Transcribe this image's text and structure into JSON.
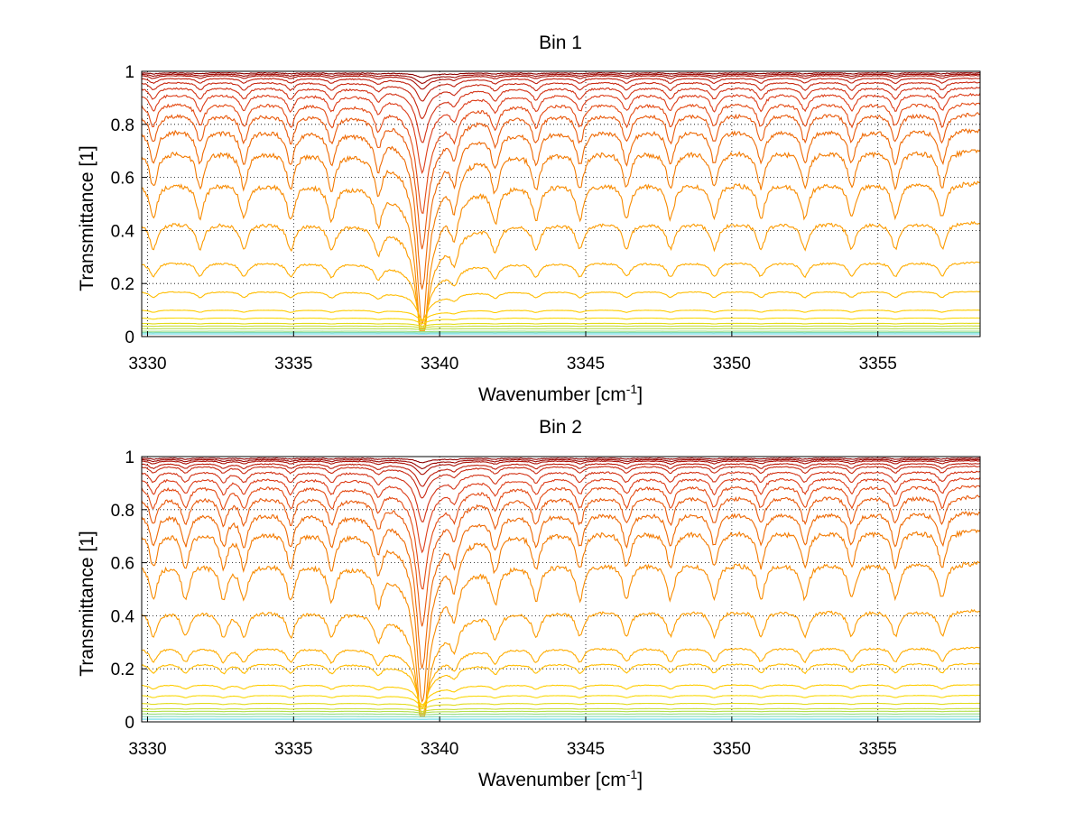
{
  "figure": {
    "background": "#ffffff"
  },
  "chart_data": [
    {
      "type": "line",
      "title": "Bin 1",
      "xlabel": "Wavenumber [cm",
      "xlabel_sup": "-1",
      "xlabel_suffix": "]",
      "ylabel": "Transmittance [1]",
      "xlim": [
        3329.8,
        3358.5
      ],
      "ylim": [
        0,
        1
      ],
      "xticks": [
        3330,
        3335,
        3340,
        3345,
        3350,
        3355
      ],
      "xtick_labels": [
        "3330",
        "3335",
        "3340",
        "3345",
        "3350",
        "3355"
      ],
      "yticks": [
        0,
        0.2,
        0.4,
        0.6,
        0.8,
        1
      ],
      "ytick_labels": [
        "0",
        "0.2",
        "0.4",
        "0.6",
        "0.8",
        "1"
      ],
      "grid": true,
      "grid_style": "dotted",
      "colormap": [
        "#8b0000",
        "#c1200f",
        "#e0401a",
        "#f07000",
        "#ffa500",
        "#ffd700",
        "#b8e04a",
        "#66d9e8"
      ],
      "line_spectra": {
        "baseline_levels": [
          0.995,
          0.99,
          0.985,
          0.975,
          0.96,
          0.94,
          0.915,
          0.88,
          0.84,
          0.78,
          0.7,
          0.58,
          0.43,
          0.28,
          0.17,
          0.1,
          0.07,
          0.05,
          0.04,
          0.03,
          0.02,
          0.015,
          0.01
        ],
        "strong_line_center": 3339.4,
        "absorption_line_centers": [
          3330.2,
          3331.8,
          3333.3,
          3334.9,
          3336.3,
          3337.9,
          3340.5,
          3341.9,
          3343.3,
          3344.8,
          3346.4,
          3347.9,
          3349.4,
          3351.0,
          3352.5,
          3354.1,
          3355.6,
          3357.2
        ],
        "series_count": 23
      }
    },
    {
      "type": "line",
      "title": "Bin 2",
      "xlabel": "Wavenumber [cm",
      "xlabel_sup": "-1",
      "xlabel_suffix": "]",
      "ylabel": "Transmittance [1]",
      "xlim": [
        3329.8,
        3358.5
      ],
      "ylim": [
        0,
        1
      ],
      "xticks": [
        3330,
        3335,
        3340,
        3345,
        3350,
        3355
      ],
      "xtick_labels": [
        "3330",
        "3335",
        "3340",
        "3345",
        "3350",
        "3355"
      ],
      "yticks": [
        0,
        0.2,
        0.4,
        0.6,
        0.8,
        1
      ],
      "ytick_labels": [
        "0",
        "0.2",
        "0.4",
        "0.6",
        "0.8",
        "1"
      ],
      "grid": true,
      "grid_style": "dotted",
      "colormap": [
        "#8b0000",
        "#c1200f",
        "#e0401a",
        "#f07000",
        "#ffa500",
        "#ffd700",
        "#b8e04a",
        "#66d9e8"
      ],
      "line_spectra": {
        "baseline_levels": [
          0.995,
          0.99,
          0.985,
          0.975,
          0.965,
          0.945,
          0.92,
          0.89,
          0.85,
          0.79,
          0.72,
          0.6,
          0.42,
          0.28,
          0.22,
          0.14,
          0.1,
          0.07,
          0.05,
          0.04,
          0.03,
          0.02,
          0.01
        ],
        "strong_line_center": 3339.4,
        "absorption_line_centers": [
          3330.2,
          3331.3,
          3332.6,
          3333.3,
          3334.9,
          3336.3,
          3337.9,
          3340.5,
          3341.9,
          3343.3,
          3344.8,
          3346.4,
          3347.9,
          3349.4,
          3351.0,
          3352.5,
          3354.1,
          3355.6,
          3357.2
        ],
        "series_count": 23
      }
    }
  ]
}
